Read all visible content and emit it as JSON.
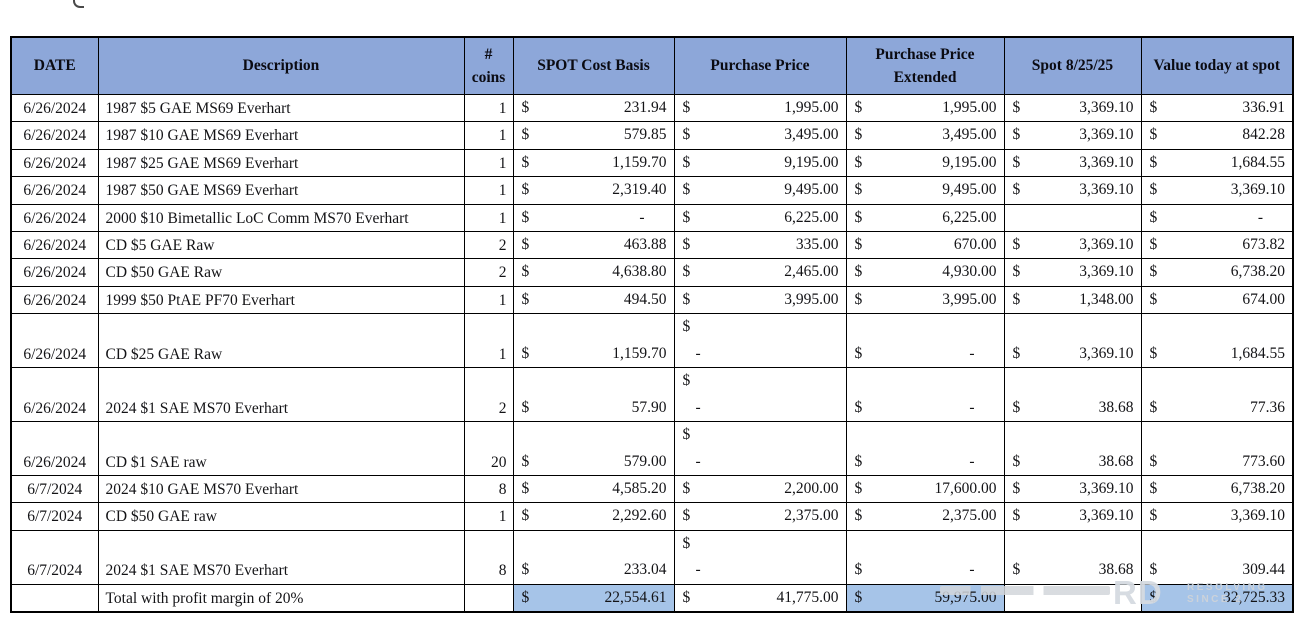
{
  "colors": {
    "header_bg": "#8da7d9",
    "highlight_bg": "#a6c4e8",
    "grid": "#000000"
  },
  "currency_symbol": "$",
  "table": {
    "columns": [
      "DATE",
      "Description",
      "#\ncoins",
      "SPOT Cost Basis",
      "Purchase Price",
      "Purchase Price Extended",
      "Spot 8/25/25",
      "Value today at spot"
    ],
    "rows": [
      {
        "date": "6/26/2024",
        "desc": "1987 $5 GAE MS69 Everhart",
        "coins": "1",
        "money": [
          {
            "a": "231.94"
          },
          {
            "a": "1,995.00"
          },
          {
            "a": "1,995.00"
          },
          {
            "a": "3,369.10"
          },
          {
            "a": "336.91"
          }
        ]
      },
      {
        "date": "6/26/2024",
        "desc": "1987 $10 GAE MS69 Everhart",
        "coins": "1",
        "money": [
          {
            "a": "579.85"
          },
          {
            "a": "3,495.00"
          },
          {
            "a": "3,495.00"
          },
          {
            "a": "3,369.10"
          },
          {
            "a": "842.28"
          }
        ]
      },
      {
        "date": "6/26/2024",
        "desc": "1987 $25 GAE MS69 Everhart",
        "coins": "1",
        "money": [
          {
            "a": "1,159.70"
          },
          {
            "a": "9,195.00"
          },
          {
            "a": "9,195.00"
          },
          {
            "a": "3,369.10"
          },
          {
            "a": "1,684.55"
          }
        ]
      },
      {
        "date": "6/26/2024",
        "desc": "1987 $50 GAE MS69 Everhart",
        "coins": "1",
        "money": [
          {
            "a": "2,319.40"
          },
          {
            "a": "9,495.00"
          },
          {
            "a": "9,495.00"
          },
          {
            "a": "3,369.10"
          },
          {
            "a": "3,369.10"
          }
        ]
      },
      {
        "date": "6/26/2024",
        "desc": "2000 $10 Bimetallic LoC Comm MS70 Everhart",
        "coins": "1",
        "money": [
          {
            "a": "-",
            "dash": true
          },
          {
            "a": "6,225.00"
          },
          {
            "a": "6,225.00"
          },
          null,
          {
            "a": "-",
            "dash": true
          }
        ]
      },
      {
        "date": "6/26/2024",
        "desc": "CD $5 GAE Raw",
        "coins": "2",
        "money": [
          {
            "a": "463.88"
          },
          {
            "a": "335.00"
          },
          {
            "a": "670.00"
          },
          {
            "a": "3,369.10"
          },
          {
            "a": "673.82"
          }
        ]
      },
      {
        "date": "6/26/2024",
        "desc": "CD $50 GAE Raw",
        "coins": "2",
        "money": [
          {
            "a": "4,638.80"
          },
          {
            "a": "2,465.00"
          },
          {
            "a": "4,930.00"
          },
          {
            "a": "3,369.10"
          },
          {
            "a": "6,738.20"
          }
        ]
      },
      {
        "date": "6/26/2024",
        "desc": "1999 $50 PtAE PF70 Everhart",
        "coins": "1",
        "money": [
          {
            "a": "494.50"
          },
          {
            "a": "3,995.00"
          },
          {
            "a": "3,995.00"
          },
          {
            "a": "1,348.00"
          },
          {
            "a": "674.00"
          }
        ]
      },
      {
        "date": "6/26/2024",
        "desc": "CD $25 GAE Raw",
        "coins": "1",
        "tall": true,
        "money": [
          {
            "a": "1,159.70"
          },
          {
            "a": "-",
            "wrap": true
          },
          {
            "a": "-",
            "dash": true
          },
          {
            "a": "3,369.10"
          },
          {
            "a": "1,684.55"
          }
        ]
      },
      {
        "date": "6/26/2024",
        "desc": "2024 $1 SAE MS70 Everhart",
        "coins": "2",
        "tall": true,
        "money": [
          {
            "a": "57.90"
          },
          {
            "a": "-",
            "wrap": true
          },
          {
            "a": "-",
            "dash": true
          },
          {
            "a": "38.68"
          },
          {
            "a": "77.36"
          }
        ]
      },
      {
        "date": "6/26/2024",
        "desc": "CD $1 SAE raw",
        "coins": "20",
        "tall": true,
        "money": [
          {
            "a": "579.00"
          },
          {
            "a": "-",
            "wrap": true
          },
          {
            "a": "-",
            "dash": true
          },
          {
            "a": "38.68"
          },
          {
            "a": "773.60"
          }
        ]
      },
      {
        "date": "6/7/2024",
        "desc": "2024 $10 GAE MS70 Everhart",
        "coins": "8",
        "money": [
          {
            "a": "4,585.20"
          },
          {
            "a": "2,200.00"
          },
          {
            "a": "17,600.00"
          },
          {
            "a": "3,369.10"
          },
          {
            "a": "6,738.20"
          }
        ]
      },
      {
        "date": "6/7/2024",
        "desc": "CD $50 GAE raw",
        "coins": "1",
        "money": [
          {
            "a": "2,292.60"
          },
          {
            "a": "2,375.00"
          },
          {
            "a": "2,375.00"
          },
          {
            "a": "3,369.10"
          },
          {
            "a": "3,369.10"
          }
        ]
      },
      {
        "date": "6/7/2024",
        "desc": "2024 $1 SAE MS70 Everhart",
        "coins": "8",
        "tall": true,
        "money": [
          {
            "a": "233.04"
          },
          {
            "a": "-",
            "wrap": true
          },
          {
            "a": "-",
            "dash": true
          },
          {
            "a": "38.68"
          },
          {
            "a": "309.44"
          }
        ]
      }
    ],
    "total": {
      "label": "Total with profit margin of 20%",
      "money": [
        {
          "a": "22,554.61",
          "hl": true
        },
        {
          "a": "41,775.00"
        },
        {
          "a": "59,975.00",
          "hl": true
        },
        null,
        {
          "a": "32,725.33",
          "hl": true
        }
      ]
    }
  },
  "watermark": {
    "big": "RD",
    "line1": "RESOLVING",
    "line2": "SINCE 2"
  }
}
